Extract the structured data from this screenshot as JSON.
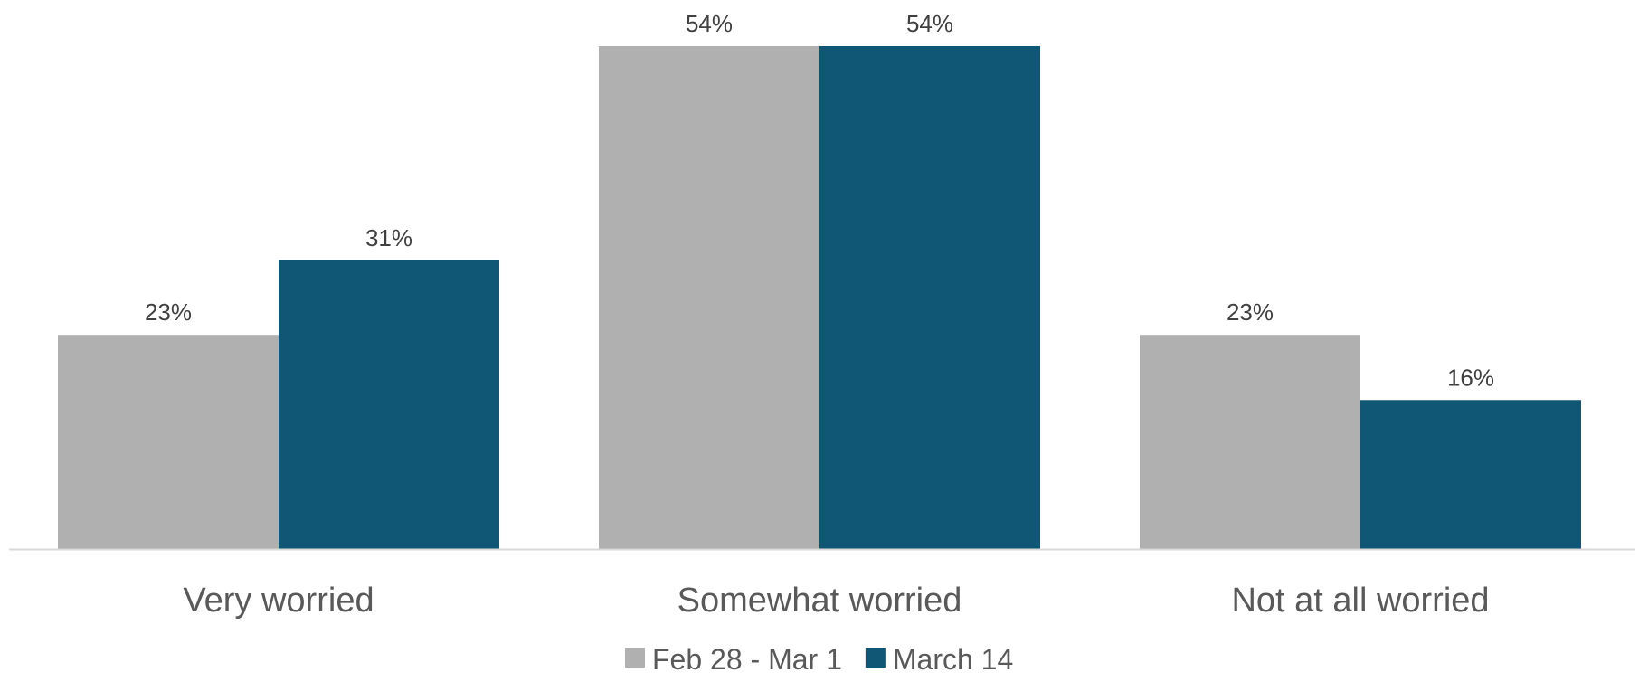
{
  "chart_data": {
    "type": "bar",
    "title": "",
    "xlabel": "",
    "ylabel": "",
    "categories": [
      "Very worried",
      "Somewhat worried",
      "Not at all worried"
    ],
    "series": [
      {
        "name": "Feb 28 - Mar 1",
        "values": [
          23,
          54,
          23
        ],
        "labels": [
          "23%",
          "54%",
          "23%"
        ],
        "color": "#b0b0b0"
      },
      {
        "name": "March 14",
        "values": [
          31,
          54,
          16
        ],
        "labels": [
          "31%",
          "54%",
          "16%"
        ],
        "color": "#105675"
      }
    ],
    "ylim": [
      0,
      54
    ],
    "grid": false,
    "legend_position": "bottom",
    "axis_color": "#d9d9d9"
  }
}
